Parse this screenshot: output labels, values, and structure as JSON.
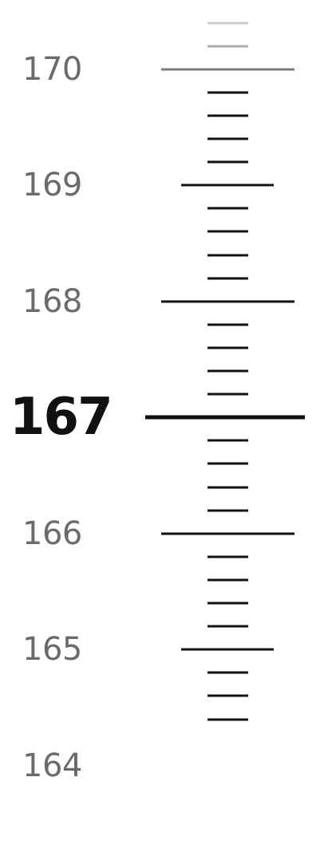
{
  "picker": {
    "min_visible": 164,
    "max_visible": 170,
    "selected_value": "167",
    "labels": [
      "170",
      "169",
      "168",
      "167",
      "166",
      "165",
      "164"
    ]
  },
  "colors": {
    "background": "#ffffff",
    "label": "#6b6b6b",
    "selected": "#111111",
    "tick": "#111111"
  }
}
